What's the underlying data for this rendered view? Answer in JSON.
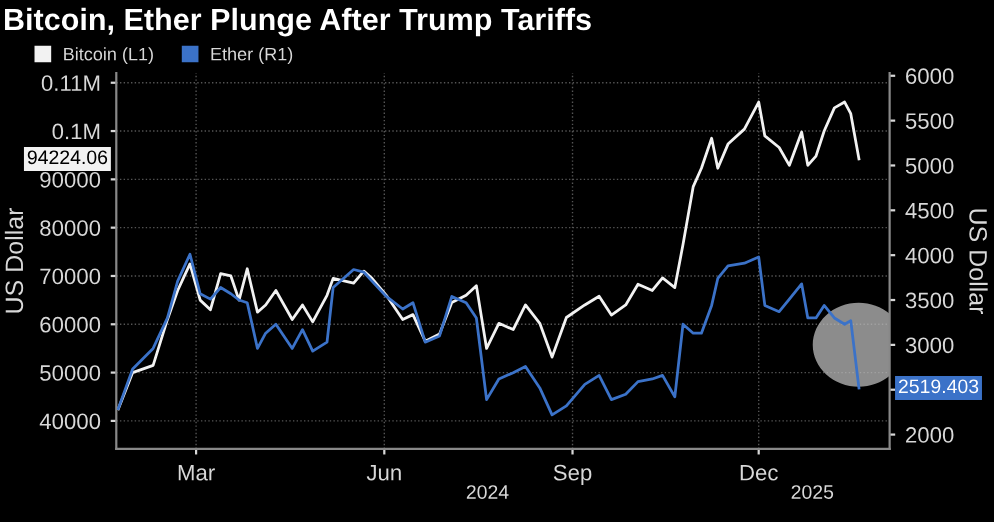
{
  "chart_data": {
    "type": "line",
    "title": "Bitcoin, Ether Plunge After Trump Tariffs",
    "ylabel": "US Dollar",
    "y2label": "US Dollar",
    "annotations": [
      "2024",
      "2025",
      "94224.06",
      "2519.403"
    ],
    "x": [
      "2024-02-06",
      "2024-02-13",
      "2024-02-23",
      "2024-03-01",
      "2024-03-06",
      "2024-03-12",
      "2024-03-17",
      "2024-03-22",
      "2024-03-27",
      "2024-04-01",
      "2024-04-05",
      "2024-04-09",
      "2024-04-14",
      "2024-04-18",
      "2024-04-23",
      "2024-05-01",
      "2024-05-06",
      "2024-05-11",
      "2024-05-18",
      "2024-05-21",
      "2024-05-31",
      "2024-06-05",
      "2024-06-09",
      "2024-06-16",
      "2024-06-24",
      "2024-06-29",
      "2024-07-05",
      "2024-07-12",
      "2024-07-18",
      "2024-07-25",
      "2024-07-30",
      "2024-08-04",
      "2024-08-10",
      "2024-08-17",
      "2024-08-23",
      "2024-08-30",
      "2024-09-05",
      "2024-09-12",
      "2024-09-21",
      "2024-09-28",
      "2024-10-04",
      "2024-10-11",
      "2024-10-17",
      "2024-10-24",
      "2024-10-29",
      "2024-11-04",
      "2024-11-08",
      "2024-11-13",
      "2024-11-17",
      "2024-11-22",
      "2024-11-25",
      "2024-11-30",
      "2024-12-08",
      "2024-12-15",
      "2024-12-18",
      "2024-12-25",
      "2024-12-30",
      "2025-01-05",
      "2025-01-08",
      "2025-01-12",
      "2025-01-16",
      "2025-01-21",
      "2025-01-26",
      "2025-01-29",
      "2025-02-02"
    ],
    "series": [
      {
        "name": "Bitcoin (L1)",
        "color": "#f2f2f2",
        "values": [
          42500,
          50000,
          51500,
          61000,
          67000,
          72500,
          65000,
          63000,
          70500,
          70000,
          65000,
          71500,
          62500,
          64000,
          67000,
          61000,
          64000,
          60500,
          66000,
          69500,
          68500,
          71000,
          69500,
          66000,
          61000,
          62000,
          56500,
          58000,
          64500,
          66000,
          68000,
          55000,
          60200,
          58900,
          64000,
          60200,
          53200,
          61400,
          64000,
          65800,
          61900,
          64000,
          68300,
          67000,
          69600,
          67600,
          76500,
          88500,
          92300,
          98500,
          92300,
          97300,
          100400,
          106000,
          99000,
          96600,
          92900,
          99800,
          92900,
          94800,
          100000,
          104800,
          106000,
          103600,
          94224.06
        ]
      },
      {
        "name": "Ether (R1)",
        "color": "#3b72c8",
        "axis": "y2",
        "values": [
          2290,
          2730,
          2960,
          3300,
          3710,
          4010,
          3570,
          3510,
          3640,
          3570,
          3500,
          3470,
          2960,
          3130,
          3230,
          2960,
          3170,
          2930,
          3030,
          3640,
          3840,
          3810,
          3710,
          3540,
          3400,
          3470,
          3030,
          3100,
          3540,
          3470,
          3300,
          2390,
          2620,
          2690,
          2760,
          2520,
          2220,
          2320,
          2560,
          2660,
          2390,
          2450,
          2590,
          2620,
          2660,
          2420,
          3230,
          3130,
          3130,
          3440,
          3740,
          3880,
          3910,
          3980,
          3440,
          3370,
          3510,
          3680,
          3300,
          3300,
          3440,
          3300,
          3230,
          3270,
          2519.403
        ]
      }
    ],
    "xlim": [
      "2024-02-05",
      "2025-02-17"
    ],
    "xticks": [
      {
        "value": "2024-03-15",
        "label": "Mar"
      },
      {
        "value": "2024-06-15",
        "label": "Jun"
      },
      {
        "value": "2024-09-15",
        "label": "Sep"
      },
      {
        "value": "2024-12-15",
        "label": "Dec"
      }
    ],
    "ylim": [
      34200,
      112000
    ],
    "yticks": [
      40000,
      50000,
      60000,
      70000,
      80000,
      90000,
      {
        "value": 100000,
        "label": "0.1M"
      },
      {
        "value": 110000,
        "label": "0.11M"
      }
    ],
    "y2lim": [
      1840,
      6030
    ],
    "y2ticks": [
      2000,
      {
        "value": 2500,
        "label": null
      },
      3000,
      3500,
      4000,
      4500,
      5000,
      5500,
      6000
    ],
    "grid": true,
    "legend": "top left",
    "line_style": "solid"
  }
}
